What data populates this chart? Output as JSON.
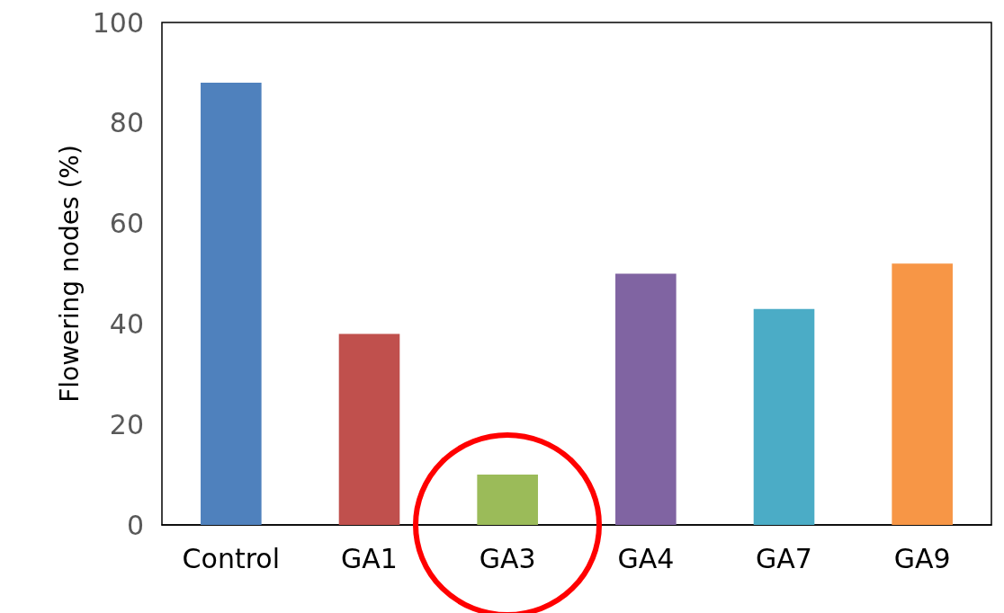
{
  "chart_data": {
    "type": "bar",
    "ylabel": "Flowering nodes (%)",
    "categories": [
      "Control",
      "GA1",
      "GA3",
      "GA4",
      "GA7",
      "GA9"
    ],
    "values": [
      88,
      38,
      10,
      50,
      43,
      52
    ],
    "colors": [
      "#4f81bd",
      "#c0504d",
      "#9bbb59",
      "#8064a2",
      "#4bacc6",
      "#f79646"
    ],
    "ylim": [
      0,
      100
    ],
    "yticks": [
      0,
      20,
      40,
      60,
      80,
      100
    ]
  }
}
